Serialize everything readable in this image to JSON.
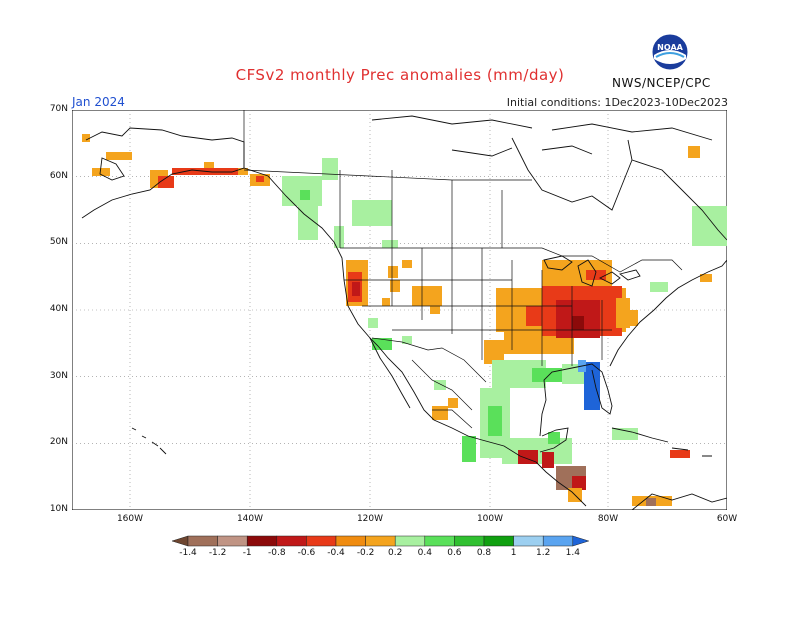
{
  "header": {
    "title": "CFSv2 monthly Prec anomalies (mm/day)",
    "month": "Jan 2024",
    "initial_conditions": "Initial conditions: 1Dec2023-10Dec2023",
    "agency": "NWS/NCEP/CPC",
    "logo_text": "NOAA"
  },
  "axes": {
    "lat_labels": [
      "70N",
      "60N",
      "50N",
      "40N",
      "30N",
      "20N",
      "10N"
    ],
    "lon_labels": [
      "160W",
      "140W",
      "120W",
      "100W",
      "80W",
      "60W"
    ]
  },
  "colorbar": {
    "labels": [
      "-1.4",
      "-1.2",
      "-1",
      "-0.8",
      "-0.6",
      "-0.4",
      "-0.2",
      "0.2",
      "0.4",
      "0.6",
      "0.8",
      "1",
      "1.2",
      "1.4"
    ],
    "colors": [
      "#6e4630",
      "#a0705a",
      "#c09484",
      "#8c0a0a",
      "#c01818",
      "#e83a18",
      "#f08c10",
      "#f4a41e",
      "#a8f0a0",
      "#5ae05a",
      "#30c030",
      "#10a010",
      "#9ccff0",
      "#5aa4f0",
      "#1e64d8"
    ]
  },
  "colors": {
    "title": "#e03030",
    "month": "#2050d0",
    "orange": "#f4a41e",
    "red": "#e83a18",
    "darkred": "#c01818",
    "lightgreen": "#a8f0a0",
    "green": "#5ae05a",
    "blue": "#1e64d8",
    "brown": "#a0705a"
  }
}
